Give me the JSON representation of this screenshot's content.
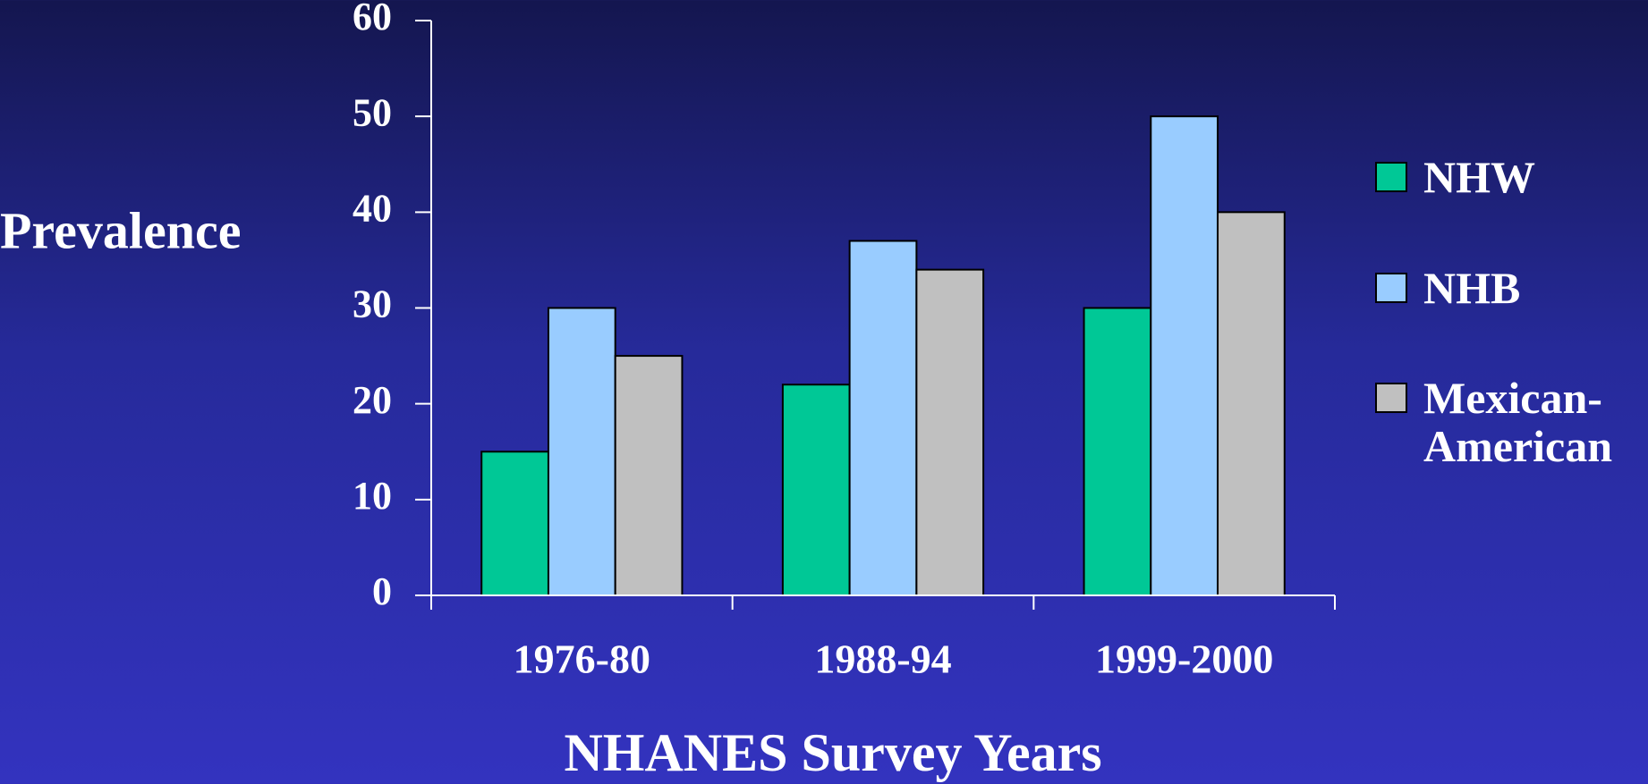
{
  "chart_data": {
    "type": "bar",
    "x_label": "NHANES Survey Years",
    "y_label": "Prevalence",
    "categories": [
      "1976-80",
      "1988-94",
      "1999-2000"
    ],
    "series": [
      {
        "name": "NHW",
        "color": "#00c896",
        "values": [
          15,
          22,
          30
        ]
      },
      {
        "name": "NHB",
        "color": "#99ccff",
        "values": [
          30,
          37,
          50
        ]
      },
      {
        "name": "Mexican-American",
        "color": "#c0c0c0",
        "values": [
          25,
          34,
          40
        ]
      }
    ],
    "ylim": [
      0,
      60
    ],
    "yticks": [
      0,
      10,
      20,
      30,
      40,
      50,
      60
    ],
    "grid": false,
    "legend": "right"
  }
}
